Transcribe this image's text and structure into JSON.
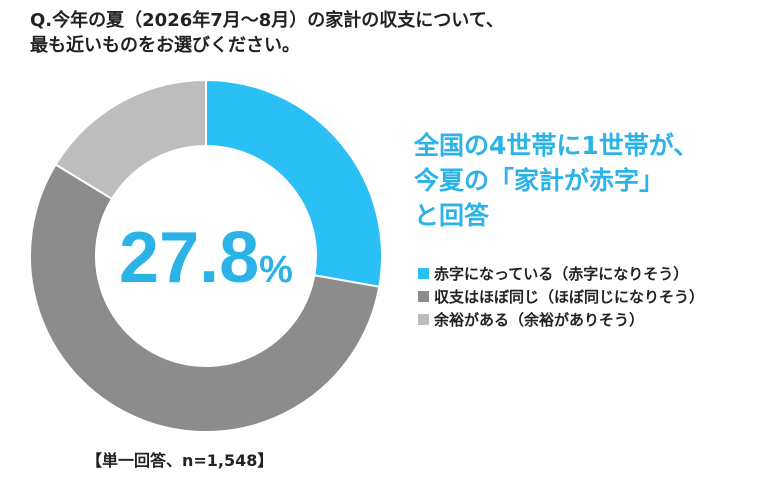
{
  "question": {
    "line1": "Q.今年の夏（2026年7月～8月）の家計の収支について、",
    "line2": "最も近いものをお選びください。"
  },
  "headline": {
    "line1": "全国の4世帯に1世帯が、",
    "line2": "今夏の「家計が赤字」",
    "line3": "と回答"
  },
  "center": {
    "value": "27.8",
    "unit": "%"
  },
  "footnote": "【単一回答、n=1,548】",
  "chart_data": {
    "type": "pie",
    "donut": true,
    "start_angle_deg": 0,
    "direction": "clockwise",
    "categories": [
      "赤字になっている（赤字になりそう）",
      "収支はほぼ同じ（ほぼ同じになりそう）",
      "余裕がある（余裕がありそう）"
    ],
    "values": [
      27.8,
      55.9,
      16.3
    ],
    "colors": [
      "#2BC0F5",
      "#8C8C8C",
      "#BDBDBD"
    ],
    "legend": "right"
  }
}
